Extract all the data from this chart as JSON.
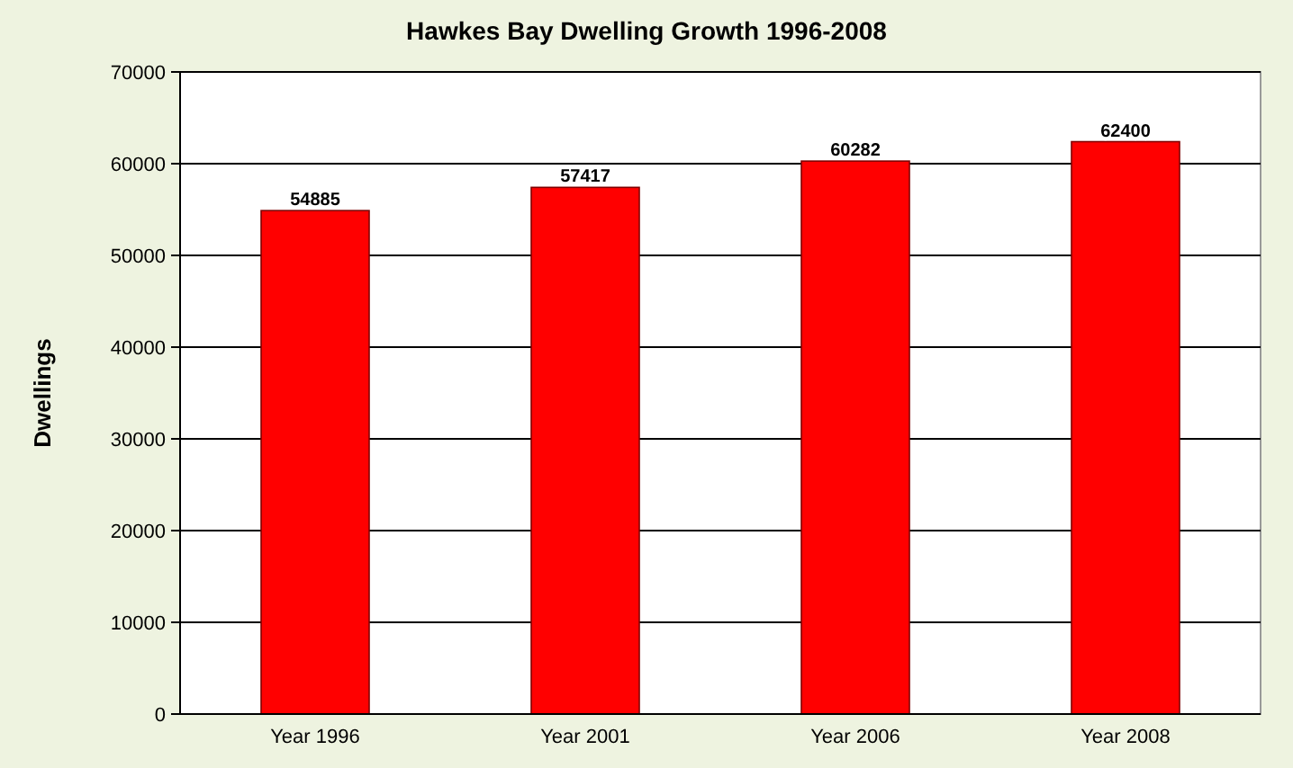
{
  "chart_data": {
    "type": "bar",
    "title": "Hawkes Bay Dwelling Growth 1996-2008",
    "ylabel": "Dwellings",
    "categories": [
      "Year 1996",
      "Year 2001",
      "Year 2006",
      "Year 2008"
    ],
    "values": [
      54885,
      57417,
      60282,
      62400
    ],
    "color": "#ff0000",
    "ylim": [
      0,
      70000
    ],
    "yticks": [
      0,
      10000,
      20000,
      30000,
      40000,
      50000,
      60000,
      70000
    ],
    "grid": "y",
    "data_labels": true
  }
}
